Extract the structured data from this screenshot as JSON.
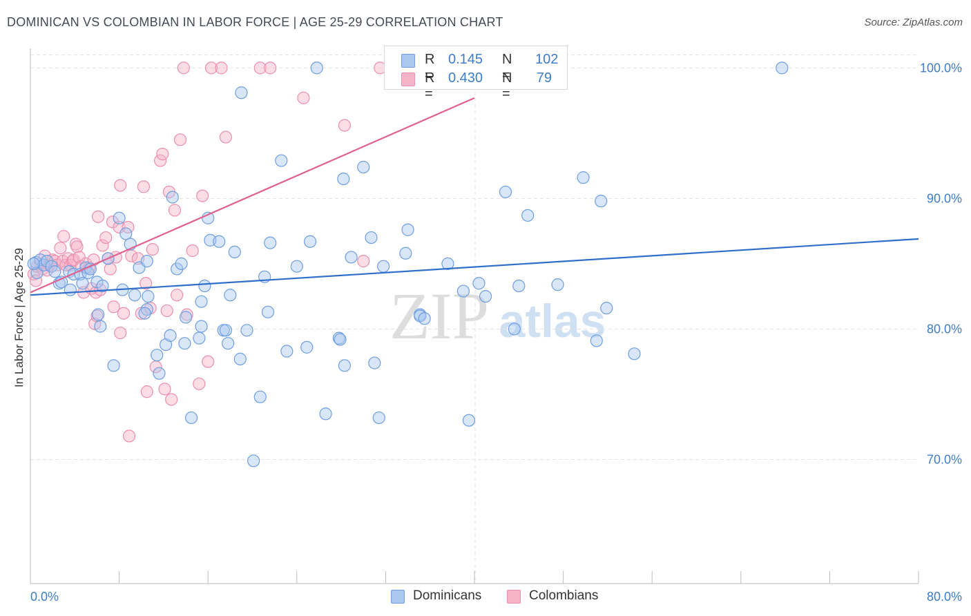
{
  "title": "DOMINICAN VS COLOMBIAN IN LABOR FORCE | AGE 25-29 CORRELATION CHART",
  "source": "Source: ZipAtlas.com",
  "watermark": {
    "zip": "ZIP",
    "atlas": "atlas"
  },
  "legend": {
    "rows": [
      {
        "r_label": "R =",
        "r_value": "0.145",
        "n_label": "N =",
        "n_value": "102",
        "color": "#a9c7ef"
      },
      {
        "r_label": "R =",
        "r_value": "0.430",
        "n_label": "N =",
        "n_value": "79",
        "color": "#f6b4c8"
      }
    ]
  },
  "bottom_legend": {
    "a": "Dominicans",
    "b": "Colombians"
  },
  "chart_data": {
    "type": "scatter",
    "title": "DOMINICAN VS COLOMBIAN IN LABOR FORCE | AGE 25-29 CORRELATION CHART",
    "xlabel": "",
    "ylabel": "In Labor Force | Age 25-29",
    "xlim": [
      0,
      80
    ],
    "ylim": [
      60.5,
      101.5
    ],
    "x_tick_labels": [
      "0.0%",
      "80.0%"
    ],
    "y_ticks": [
      70,
      80,
      90,
      100
    ],
    "y_tick_labels": [
      "70.0%",
      "80.0%",
      "90.0%",
      "100.0%"
    ],
    "grid": true,
    "series": [
      {
        "name": "Dominicans",
        "color": "#a9c7ef",
        "edge": "#6d9ee0",
        "line_color": "#2f6fca",
        "trend": {
          "x0": 0,
          "y0": 82.6,
          "x1": 80,
          "y1": 86.9
        },
        "points": [
          [
            0.5,
            85.1
          ],
          [
            0.6,
            84.3
          ],
          [
            0.9,
            85.3
          ],
          [
            1.2,
            84.9
          ],
          [
            1.5,
            85.2
          ],
          [
            1.9,
            84.8
          ],
          [
            2.2,
            84.4
          ],
          [
            2.6,
            83.5
          ],
          [
            2.8,
            83.6
          ],
          [
            3.5,
            84.4
          ],
          [
            3.6,
            83.0
          ],
          [
            3.9,
            84.2
          ],
          [
            4.5,
            84.2
          ],
          [
            4.7,
            83.5
          ],
          [
            5.0,
            84.7
          ],
          [
            5.2,
            84.3
          ],
          [
            5.4,
            84.6
          ],
          [
            6.0,
            83.6
          ],
          [
            6.1,
            81.1
          ],
          [
            6.5,
            83.3
          ],
          [
            6.3,
            80.2
          ],
          [
            7.0,
            85.4
          ],
          [
            7.5,
            77.2
          ],
          [
            8.0,
            88.5
          ],
          [
            8.3,
            83.0
          ],
          [
            8.6,
            87.3
          ],
          [
            9.0,
            86.5
          ],
          [
            9.4,
            82.6
          ],
          [
            9.8,
            84.7
          ],
          [
            10.5,
            81.5
          ],
          [
            10.5,
            85.2
          ],
          [
            10.6,
            82.5
          ],
          [
            10.3,
            81.2
          ],
          [
            11.4,
            78.0
          ],
          [
            11.6,
            76.6
          ],
          [
            12.2,
            78.8
          ],
          [
            12.6,
            79.5
          ],
          [
            12.8,
            90.1
          ],
          [
            13.2,
            84.6
          ],
          [
            13.6,
            85.0
          ],
          [
            13.9,
            78.9
          ],
          [
            14.0,
            80.9
          ],
          [
            14.5,
            73.2
          ],
          [
            15.2,
            79.3
          ],
          [
            15.4,
            80.2
          ],
          [
            15.4,
            82.1
          ],
          [
            15.7,
            83.3
          ],
          [
            16.0,
            88.5
          ],
          [
            16.2,
            86.8
          ],
          [
            17.0,
            86.7
          ],
          [
            17.4,
            79.9
          ],
          [
            17.6,
            79.9
          ],
          [
            17.8,
            78.9
          ],
          [
            18.0,
            82.6
          ],
          [
            18.4,
            85.9
          ],
          [
            18.9,
            77.7
          ],
          [
            19.0,
            98.1
          ],
          [
            19.5,
            79.9
          ],
          [
            20.7,
            74.8
          ],
          [
            20.1,
            69.9
          ],
          [
            21.1,
            84.0
          ],
          [
            21.4,
            81.3
          ],
          [
            21.6,
            86.6
          ],
          [
            22.6,
            92.9
          ],
          [
            23.1,
            78.3
          ],
          [
            24.0,
            84.8
          ],
          [
            24.9,
            78.6
          ],
          [
            25.2,
            86.7
          ],
          [
            25.8,
            100.0
          ],
          [
            26.6,
            73.5
          ],
          [
            27.8,
            79.3
          ],
          [
            27.9,
            79.2
          ],
          [
            28.3,
            77.2
          ],
          [
            28.2,
            91.5
          ],
          [
            28.9,
            85.5
          ],
          [
            30.0,
            92.4
          ],
          [
            30.7,
            87.0
          ],
          [
            31.0,
            77.4
          ],
          [
            31.4,
            73.2
          ],
          [
            31.8,
            84.8
          ],
          [
            33.8,
            85.8
          ],
          [
            34.0,
            87.6
          ],
          [
            35.1,
            81.1
          ],
          [
            35.1,
            81.0
          ],
          [
            35.5,
            80.8
          ],
          [
            37.6,
            85.0
          ],
          [
            39.0,
            82.9
          ],
          [
            39.5,
            73.0
          ],
          [
            40.4,
            83.5
          ],
          [
            41.0,
            82.5
          ],
          [
            42.8,
            90.5
          ],
          [
            43.6,
            80.0
          ],
          [
            44.0,
            83.3
          ],
          [
            44.8,
            88.7
          ],
          [
            47.5,
            83.4
          ],
          [
            49.8,
            91.6
          ],
          [
            51.0,
            79.1
          ],
          [
            51.4,
            89.8
          ],
          [
            51.9,
            81.6
          ],
          [
            54.4,
            78.1
          ],
          [
            67.7,
            100.0
          ],
          [
            0.3,
            85.0
          ]
        ]
      },
      {
        "name": "Colombians",
        "color": "#f6b4c8",
        "edge": "#ea8fae",
        "line_color": "#e0608d",
        "trend": {
          "x0": 0,
          "y0": 82.8,
          "x1": 40,
          "y1": 97.7
        },
        "points": [
          [
            0.3,
            84.2
          ],
          [
            0.6,
            84.8
          ],
          [
            0.9,
            85.0
          ],
          [
            1.1,
            84.6
          ],
          [
            1.3,
            85.6
          ],
          [
            1.5,
            84.5
          ],
          [
            1.7,
            84.9
          ],
          [
            2.0,
            85.3
          ],
          [
            2.2,
            85.2
          ],
          [
            2.4,
            84.9
          ],
          [
            2.7,
            86.2
          ],
          [
            2.9,
            85.2
          ],
          [
            3.0,
            87.1
          ],
          [
            3.2,
            84.9
          ],
          [
            3.4,
            85.4
          ],
          [
            3.6,
            84.9
          ],
          [
            3.8,
            85.2
          ],
          [
            3.9,
            85.3
          ],
          [
            4.1,
            86.5
          ],
          [
            4.2,
            86.3
          ],
          [
            4.4,
            85.5
          ],
          [
            4.6,
            84.8
          ],
          [
            4.8,
            82.8
          ],
          [
            5.0,
            85.0
          ],
          [
            5.3,
            84.7
          ],
          [
            5.5,
            83.1
          ],
          [
            5.7,
            85.3
          ],
          [
            5.8,
            80.4
          ],
          [
            5.9,
            82.8
          ],
          [
            6.0,
            81.0
          ],
          [
            6.1,
            88.6
          ],
          [
            6.3,
            83.0
          ],
          [
            6.5,
            86.4
          ],
          [
            6.8,
            87.0
          ],
          [
            7.0,
            85.4
          ],
          [
            7.2,
            84.6
          ],
          [
            7.4,
            88.2
          ],
          [
            7.5,
            81.7
          ],
          [
            7.7,
            85.5
          ],
          [
            8.0,
            87.8
          ],
          [
            8.1,
            79.7
          ],
          [
            8.1,
            91.0
          ],
          [
            8.4,
            81.2
          ],
          [
            8.8,
            87.8
          ],
          [
            8.9,
            71.8
          ],
          [
            9.1,
            85.6
          ],
          [
            9.7,
            85.4
          ],
          [
            10.0,
            81.2
          ],
          [
            10.2,
            90.9
          ],
          [
            10.4,
            83.5
          ],
          [
            10.5,
            75.2
          ],
          [
            10.8,
            81.6
          ],
          [
            11.0,
            86.1
          ],
          [
            11.3,
            77.1
          ],
          [
            11.7,
            92.9
          ],
          [
            11.9,
            93.4
          ],
          [
            12.1,
            75.4
          ],
          [
            12.3,
            81.4
          ],
          [
            12.5,
            90.5
          ],
          [
            12.7,
            74.6
          ],
          [
            13.0,
            89.1
          ],
          [
            13.2,
            82.6
          ],
          [
            13.5,
            94.5
          ],
          [
            13.8,
            100.0
          ],
          [
            14.1,
            81.1
          ],
          [
            14.6,
            86.0
          ],
          [
            15.2,
            75.8
          ],
          [
            15.5,
            90.2
          ],
          [
            16.0,
            77.5
          ],
          [
            16.3,
            100.0
          ],
          [
            17.2,
            100.0
          ],
          [
            17.6,
            94.7
          ],
          [
            20.7,
            100.0
          ],
          [
            21.6,
            100.0
          ],
          [
            24.6,
            97.7
          ],
          [
            28.3,
            95.6
          ],
          [
            30.0,
            85.2
          ],
          [
            31.5,
            100.0
          ],
          [
            0.5,
            83.7
          ]
        ]
      }
    ]
  }
}
